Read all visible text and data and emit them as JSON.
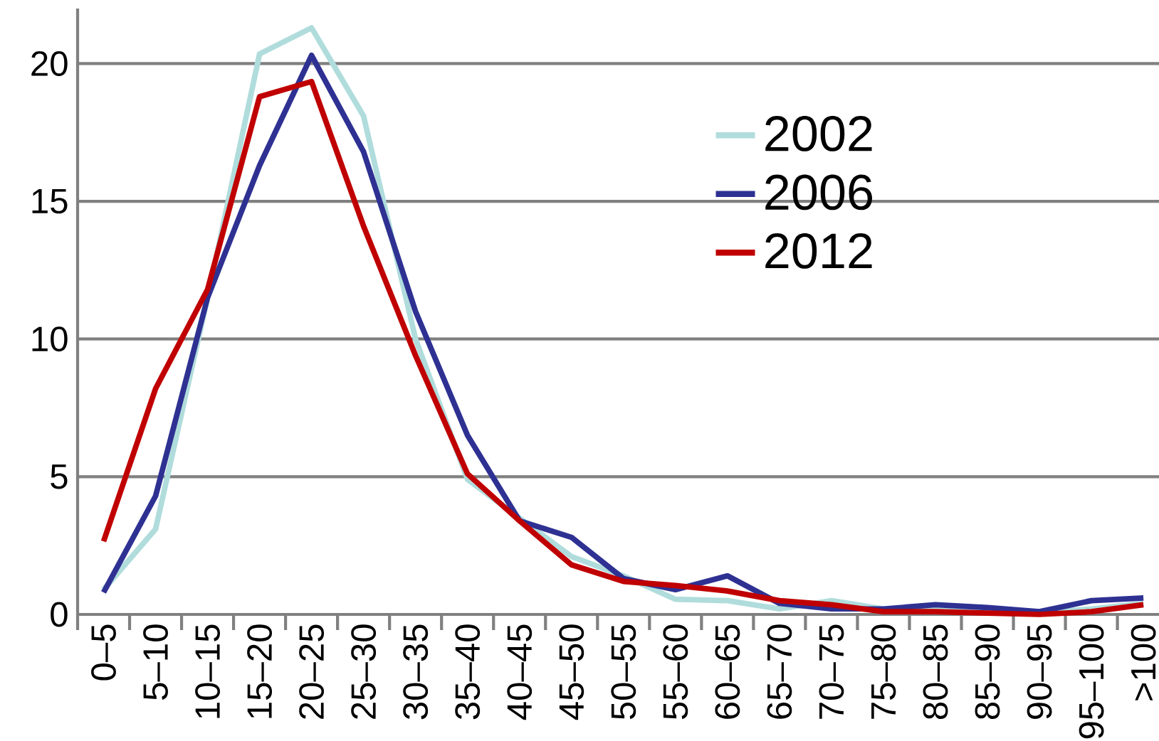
{
  "chart_data": {
    "type": "line",
    "categories": [
      "0–5",
      "5–10",
      "10–15",
      "15–20",
      "20–25",
      "25–30",
      "30–35",
      "35–40",
      "40–45",
      "45–50",
      "50–55",
      "55–60",
      "60–65",
      "65–70",
      "70–75",
      "75–80",
      "80–85",
      "85–90",
      "90–95",
      "95–100",
      ">100"
    ],
    "series": [
      {
        "name": "2002",
        "color": "#b0dcdc",
        "values": [
          0.9,
          3.1,
          11.5,
          20.35,
          21.3,
          18.1,
          10.0,
          4.9,
          null,
          2.1,
          1.4,
          0.55,
          0.5,
          0.2,
          0.5,
          0.2,
          0.15,
          null,
          0.05,
          0.2,
          0.4
        ]
      },
      {
        "name": "2006",
        "color": "#2e3192",
        "values": [
          0.8,
          4.3,
          11.5,
          16.3,
          20.3,
          16.8,
          11.0,
          6.5,
          3.4,
          2.8,
          1.3,
          0.9,
          1.4,
          0.4,
          0.2,
          0.2,
          0.35,
          0.25,
          0.1,
          0.5,
          0.6
        ]
      },
      {
        "name": "2012",
        "color": "#c00000",
        "values": [
          2.65,
          8.2,
          11.8,
          18.8,
          19.35,
          14.1,
          9.4,
          5.1,
          3.4,
          1.8,
          1.2,
          1.05,
          0.85,
          0.5,
          0.35,
          0.1,
          0.1,
          0.05,
          0.0,
          0.1,
          0.35
        ]
      }
    ],
    "ylim": [
      0,
      22
    ],
    "yticks": [
      0,
      5,
      10,
      15,
      20
    ],
    "grid": "y",
    "legend": "top right",
    "marker": "none",
    "line_style": "solid"
  }
}
